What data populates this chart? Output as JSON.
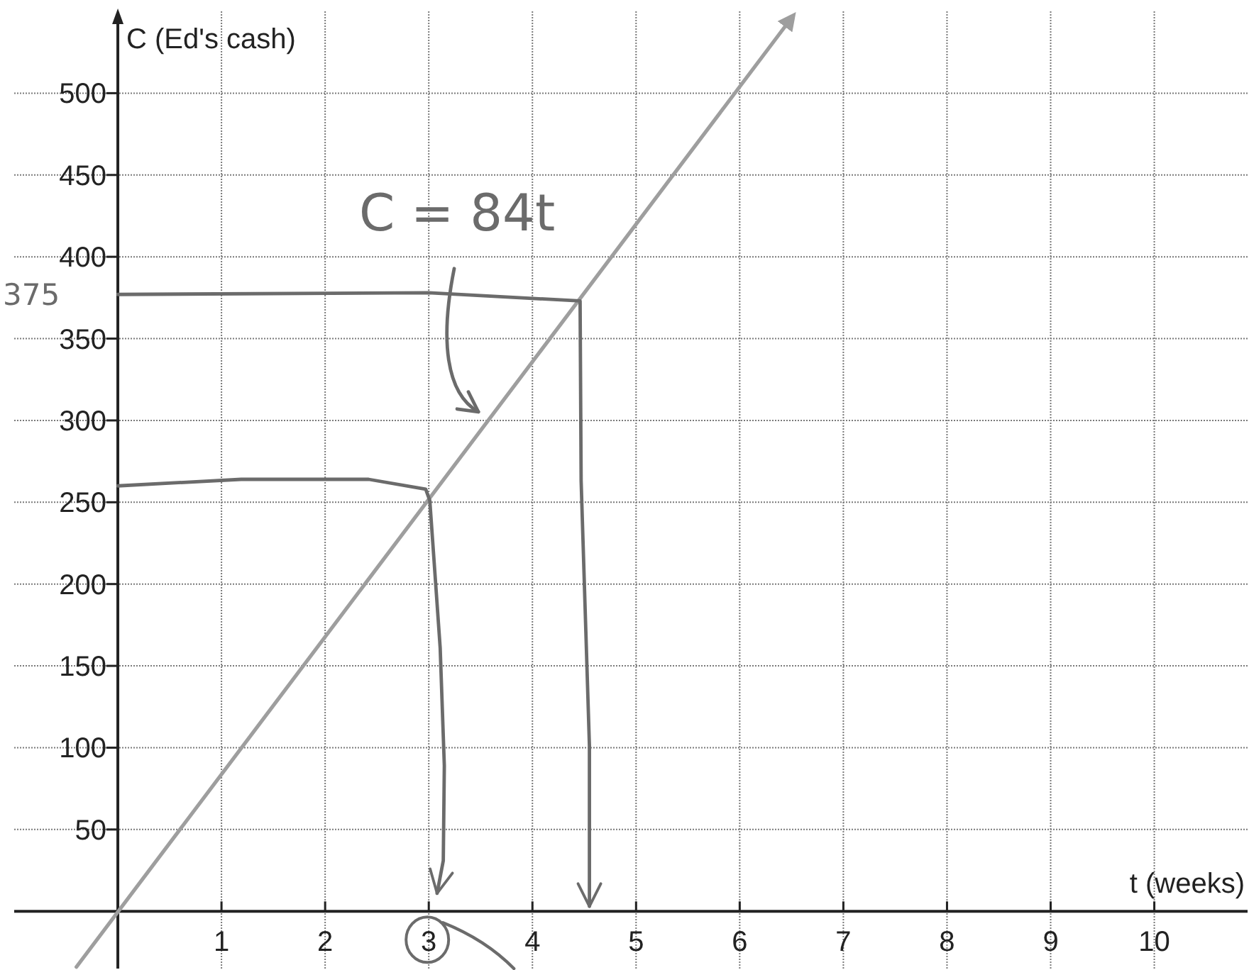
{
  "chart_data": {
    "type": "line",
    "xlabel": "t (weeks)",
    "ylabel": "C (Ed's cash)",
    "x": [
      -0.4,
      6.5
    ],
    "series": [
      {
        "color": "#9e9e9e",
        "values": [
          -34,
          546
        ]
      },
      {
        "color": "#6b6b6b",
        "x": [
          0,
          3.0,
          4.46,
          4.47,
          4.55,
          4.55
        ],
        "values": [
          377,
          378,
          373,
          263,
          101,
          3
        ]
      },
      {
        "color": "#6b6b6b",
        "x": [
          0,
          1.19,
          2.42,
          2.97,
          3.01,
          3.11,
          3.15,
          3.14,
          3.08
        ],
        "values": [
          260,
          264,
          264,
          258,
          251,
          161,
          89,
          31,
          11
        ]
      }
    ],
    "xlim": [
      -1,
      10.9
    ],
    "ylim": [
      -35,
      550
    ],
    "xticks": [
      1,
      2,
      3,
      4,
      5,
      6,
      7,
      8,
      9,
      10
    ],
    "yticks": [
      50,
      100,
      150,
      200,
      250,
      300,
      350,
      400,
      450,
      500
    ],
    "grid": true,
    "annotations": [
      "C = 84t",
      "375"
    ]
  }
}
